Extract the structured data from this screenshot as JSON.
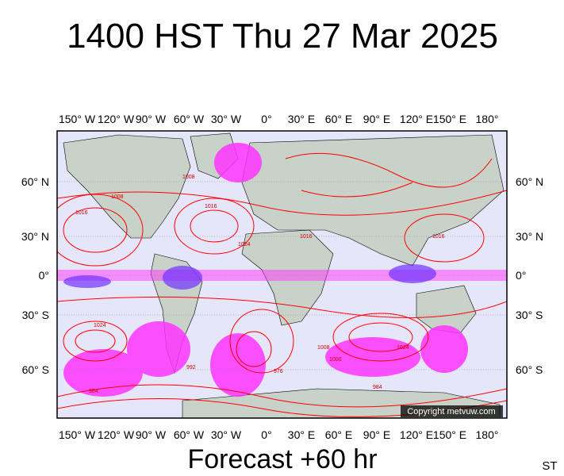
{
  "title": "1400 HST Thu 27 Mar 2025",
  "longitude_labels": [
    "150° W",
    "120° W",
    "90° W",
    "60° W",
    "30° W",
    "0°",
    "30° E",
    "60° E",
    "90° E",
    "120° E",
    "150° E",
    "180°"
  ],
  "latitude_labels": [
    "60° N",
    "30° N",
    "0°",
    "30° S",
    "60° S"
  ],
  "contour_labels": [
    "1008",
    "1016",
    "1024",
    "1008",
    "1016",
    "1024",
    "1016",
    "1008",
    "1000",
    "992",
    "984",
    "1024",
    "1016",
    "976",
    "984"
  ],
  "copyright": "Copyright metvuw.com",
  "footer": "Forecast +60 hr",
  "corner": "ST"
}
